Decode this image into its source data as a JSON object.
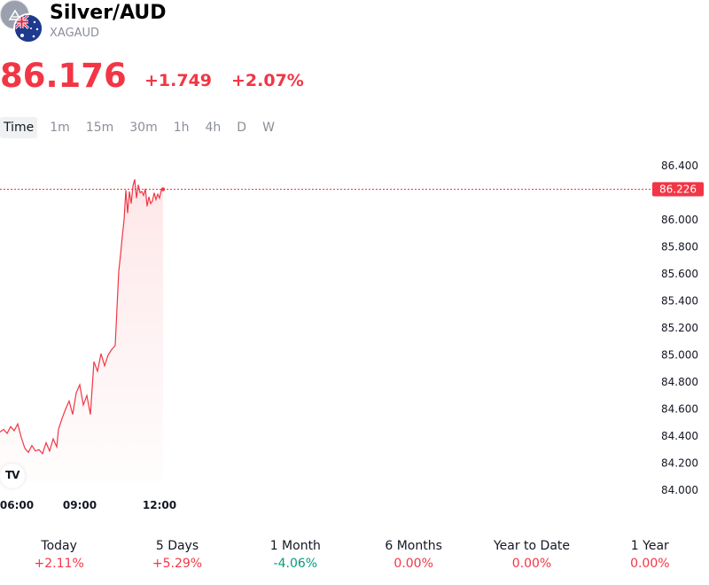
{
  "header": {
    "symbol_name": "Silver/AUD",
    "ticker": "XAGAUD",
    "logo_icons": [
      "silver-icon",
      "australia-flag-icon"
    ]
  },
  "quote": {
    "last_price": "86.176",
    "change_abs": "+1.749",
    "change_pct": "+2.07%"
  },
  "intervals": {
    "items": [
      "Time",
      "1m",
      "15m",
      "30m",
      "1h",
      "4h",
      "D",
      "W"
    ],
    "active": "Time"
  },
  "colors": {
    "down_red": "#f23645",
    "up_green": "#089981",
    "muted": "#8a8f99",
    "text": "#131722"
  },
  "chart_data": {
    "type": "area",
    "y_ticks": [
      "86.400",
      "86.000",
      "85.800",
      "85.600",
      "85.400",
      "85.200",
      "85.000",
      "84.800",
      "84.600",
      "84.400",
      "84.200",
      "84.000"
    ],
    "x_ticks": [
      "06:00",
      "09:00",
      "12:00"
    ],
    "ylim": [
      84.0,
      86.4
    ],
    "current_price_label": "86.226",
    "current_price": 86.226,
    "x": [
      0,
      4,
      8,
      12,
      16,
      20,
      24,
      28,
      32,
      36,
      40,
      44,
      48,
      52,
      56,
      60,
      64,
      66,
      70,
      74,
      78,
      82,
      86,
      90,
      94,
      98,
      102,
      106,
      110,
      114,
      118,
      122,
      126,
      130,
      134,
      136,
      138,
      140,
      142,
      144,
      146,
      148,
      150,
      152,
      154,
      156,
      158,
      160,
      162,
      164,
      166,
      168,
      170,
      172,
      174,
      176,
      178,
      180,
      182,
      184
    ],
    "values": [
      84.43,
      84.45,
      84.42,
      84.47,
      84.44,
      84.49,
      84.39,
      84.31,
      84.28,
      84.33,
      84.29,
      84.3,
      84.27,
      84.35,
      84.29,
      84.38,
      84.32,
      84.45,
      84.53,
      84.6,
      84.66,
      84.56,
      84.72,
      84.78,
      84.63,
      84.7,
      84.56,
      84.95,
      84.88,
      85.01,
      84.92,
      85.0,
      85.04,
      85.07,
      85.62,
      85.74,
      85.88,
      86.0,
      86.22,
      86.05,
      86.21,
      86.12,
      86.25,
      86.3,
      86.16,
      86.26,
      86.2,
      86.21,
      86.18,
      86.23,
      86.1,
      86.17,
      86.12,
      86.14,
      86.2,
      86.15,
      86.19,
      86.16,
      86.22,
      86.226
    ]
  },
  "performance": [
    {
      "label": "Today",
      "value": "+2.11%",
      "tone": "down_red"
    },
    {
      "label": "5 Days",
      "value": "+5.29%",
      "tone": "down_red"
    },
    {
      "label": "1 Month",
      "value": "-4.06%",
      "tone": "up_green"
    },
    {
      "label": "6 Months",
      "value": "0.00%",
      "tone": "down_red"
    },
    {
      "label": "Year to Date",
      "value": "0.00%",
      "tone": "down_red"
    },
    {
      "label": "1 Year",
      "value": "0.00%",
      "tone": "down_red"
    }
  ]
}
